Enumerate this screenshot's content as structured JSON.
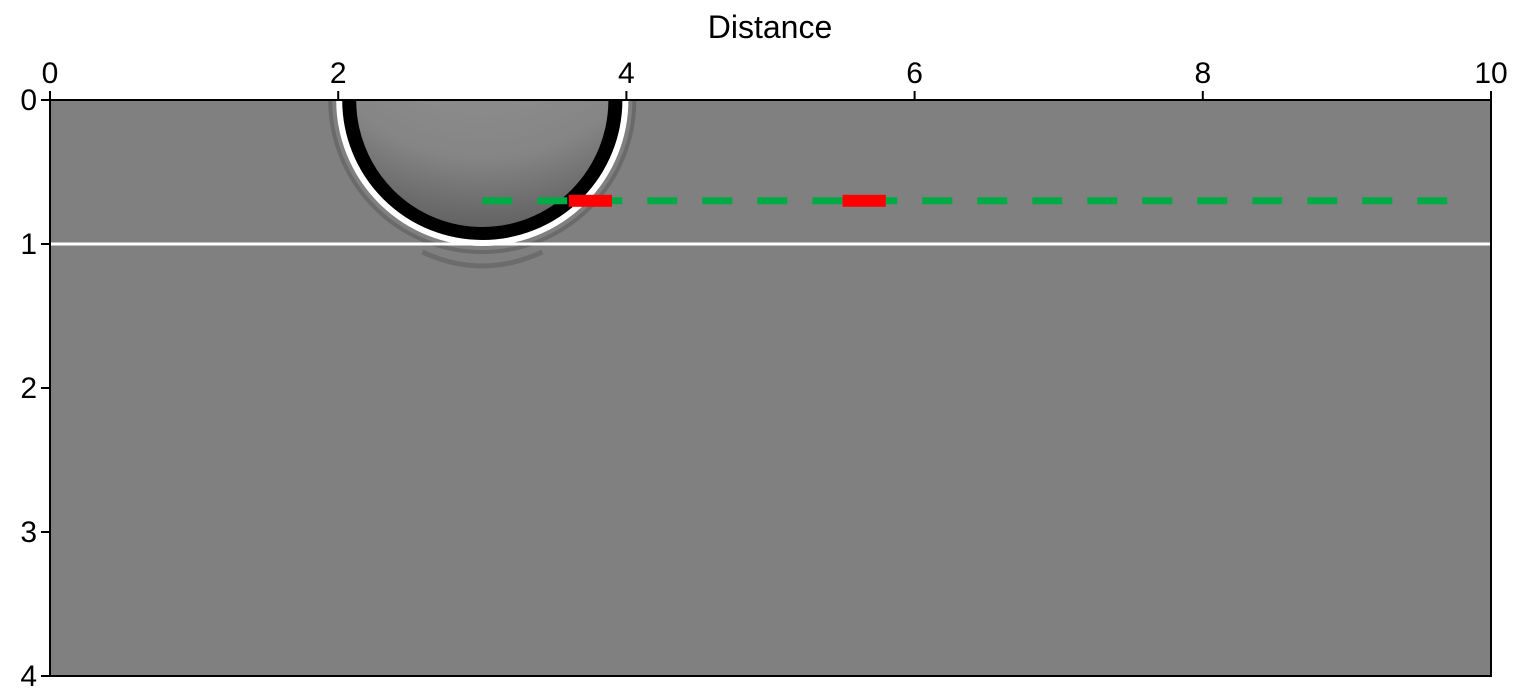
{
  "chart_data": {
    "type": "heatmap",
    "title": "",
    "xlabel": "Distance",
    "ylabel": "",
    "xlim": [
      0,
      10
    ],
    "ylim": [
      0,
      4
    ],
    "y_inverted": true,
    "x_axis_position": "top",
    "x_ticks": [
      0,
      2,
      4,
      6,
      8,
      10
    ],
    "y_ticks": [
      0,
      1,
      2,
      3,
      4
    ],
    "grid": false,
    "background_color": "#808080",
    "reflector": {
      "depth": 1.0,
      "x_range": [
        0,
        10
      ],
      "color": "#ffffff"
    },
    "wavefront": {
      "center_x": 3.0,
      "center_y": 0.0,
      "radius": 1.0,
      "outer_color": "#ffffff",
      "inner_color": "#000000"
    },
    "receiver_line": {
      "depth": 0.7,
      "x_range": [
        3.0,
        9.8
      ],
      "color": "#00aa44",
      "style": "dashed"
    },
    "highlights": [
      {
        "x_range": [
          3.6,
          3.9
        ],
        "depth": 0.7,
        "color": "#ff0000"
      },
      {
        "x_range": [
          5.5,
          5.8
        ],
        "depth": 0.7,
        "color": "#ff0000"
      }
    ]
  }
}
